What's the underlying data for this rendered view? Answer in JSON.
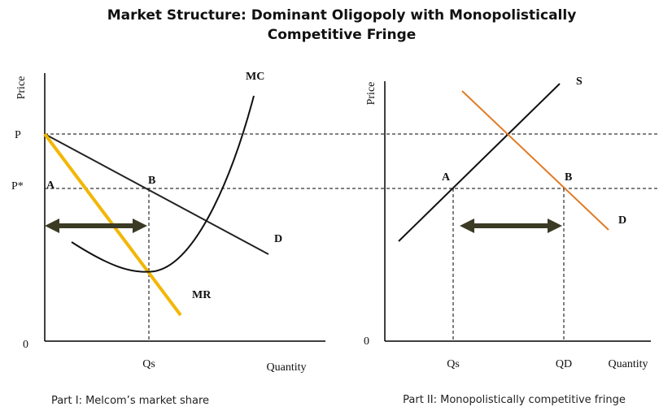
{
  "header": {
    "title": [
      "Market Structure: Dominant Oligopoly with Monopolistically",
      "Competitive Fringe"
    ]
  },
  "panels": [
    {
      "axis_y": "Price",
      "axis_x": "Quantity",
      "origin": "0",
      "price_levels": [
        "P",
        "P*"
      ],
      "points": [
        "A",
        "B"
      ],
      "curves": [
        "MC",
        "D",
        "MR"
      ],
      "quantity": "Qs",
      "caption": "Part I: Melcom’s market share"
    },
    {
      "axis_y": "Price",
      "axis_x": "Quantity",
      "origin": "0",
      "points": [
        "A",
        "B"
      ],
      "curves": [
        "S",
        "D"
      ],
      "quantities": [
        "Qs",
        "QD"
      ],
      "caption": "Part II: Monopolistically competitive fringe"
    }
  ]
}
